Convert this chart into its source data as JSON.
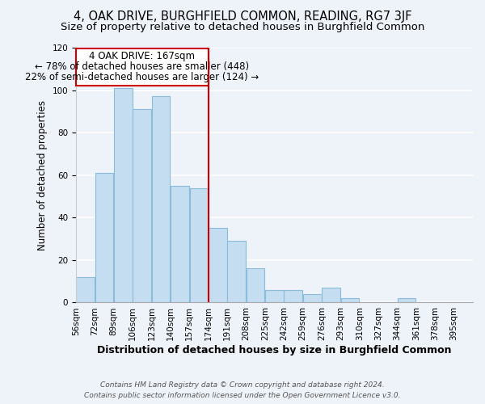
{
  "title": "4, OAK DRIVE, BURGHFIELD COMMON, READING, RG7 3JF",
  "subtitle": "Size of property relative to detached houses in Burghfield Common",
  "xlabel": "Distribution of detached houses by size in Burghfield Common",
  "ylabel": "Number of detached properties",
  "bar_color": "#c5ddf0",
  "bar_edge_color": "#8bbcdc",
  "background_color": "#eef2f9",
  "grid_color": "#ffffff",
  "bin_labels": [
    "56sqm",
    "72sqm",
    "89sqm",
    "106sqm",
    "123sqm",
    "140sqm",
    "157sqm",
    "174sqm",
    "191sqm",
    "208sqm",
    "225sqm",
    "242sqm",
    "259sqm",
    "276sqm",
    "293sqm",
    "310sqm",
    "327sqm",
    "344sqm",
    "361sqm",
    "378sqm",
    "395sqm"
  ],
  "bar_heights": [
    12,
    61,
    101,
    91,
    97,
    55,
    54,
    35,
    29,
    16,
    6,
    6,
    4,
    7,
    2,
    0,
    0,
    2,
    0,
    0,
    0
  ],
  "ylim": [
    0,
    120
  ],
  "yticks": [
    0,
    20,
    40,
    60,
    80,
    100,
    120
  ],
  "annotation_line1": "4 OAK DRIVE: 167sqm",
  "annotation_line2": "← 78% of detached houses are smaller (448)",
  "annotation_line3": "22% of semi-detached houses are larger (124) →",
  "annotation_box_color": "#ffffff",
  "annotation_box_edge_color": "#cc0000",
  "footer_line1": "Contains HM Land Registry data © Crown copyright and database right 2024.",
  "footer_line2": "Contains public sector information licensed under the Open Government Licence v3.0.",
  "title_fontsize": 10.5,
  "subtitle_fontsize": 9.5,
  "xlabel_fontsize": 9,
  "ylabel_fontsize": 8.5,
  "tick_fontsize": 7.5,
  "annotation_fontsize": 8.5,
  "footer_fontsize": 6.5
}
